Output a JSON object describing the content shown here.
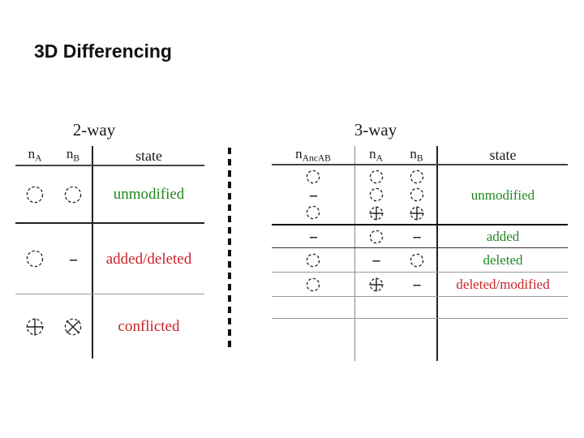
{
  "slide": {
    "title": "3D Differencing"
  },
  "colors": {
    "green": "#218a21",
    "red": "#cc2227",
    "black": "#1a1a1a"
  },
  "symbols": {
    "dash_glyph": "--"
  },
  "tables": [
    {
      "id": "two-way",
      "caption": "2-way",
      "columns": [
        {
          "base": "n",
          "sub": "A"
        },
        {
          "base": "n",
          "sub": "B"
        }
      ],
      "state_header": "state",
      "rows": [
        {
          "cells": [
            [
              "circle"
            ],
            [
              "circle"
            ]
          ],
          "state": "unmodified",
          "state_color": "green"
        },
        {
          "cells": [
            [
              "circle"
            ],
            [
              "dash"
            ]
          ],
          "state": "added/deleted",
          "state_color": "red"
        },
        {
          "cells": [
            [
              "circle-plus"
            ],
            [
              "circle-x"
            ]
          ],
          "state": "conflicted",
          "state_color": "red"
        }
      ]
    },
    {
      "id": "three-way",
      "caption": "3-way",
      "columns": [
        {
          "base": "n",
          "sub": "AncAB"
        },
        {
          "base": "n",
          "sub": "A"
        },
        {
          "base": "n",
          "sub": "B"
        }
      ],
      "state_header": "state",
      "rows": [
        {
          "cells": [
            [
              "circle",
              "dash",
              "circle"
            ],
            [
              "circle",
              "circle",
              "circle-plus"
            ],
            [
              "circle",
              "circle",
              "circle-plus"
            ]
          ],
          "state": "unmodified",
          "state_color": "green"
        },
        {
          "cells": [
            [
              "dash"
            ],
            [
              "circle"
            ],
            [
              "dash"
            ]
          ],
          "state": "added",
          "state_color": "green"
        },
        {
          "cells": [
            [
              "circle"
            ],
            [
              "dash"
            ],
            [
              "circle"
            ]
          ],
          "state": "deleted",
          "state_color": "green"
        },
        {
          "cells": [
            [
              "circle"
            ],
            [
              "circle-plus"
            ],
            [
              "dash"
            ]
          ],
          "state": "deleted/modified",
          "state_color": "red"
        },
        {
          "cells": [
            [],
            [],
            []
          ],
          "state": "",
          "state_color": null
        }
      ]
    }
  ]
}
